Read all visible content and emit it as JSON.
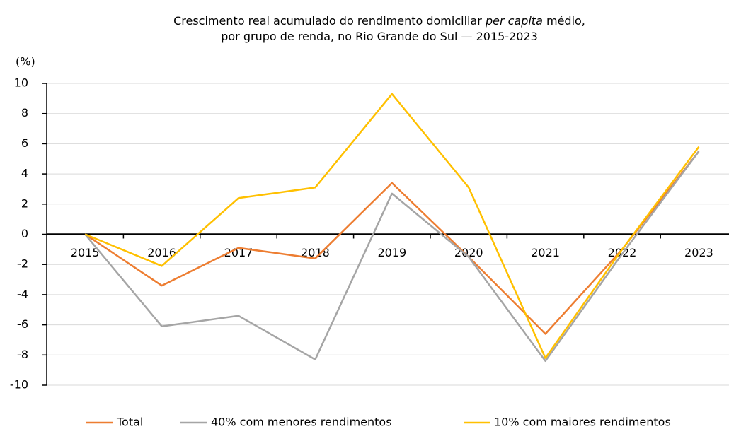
{
  "chart_data": {
    "type": "line",
    "title": [
      [
        "Crescimento real acumulado do rendimento domiciliar ",
        "per capita",
        " médio,"
      ],
      [
        "por grupo de renda, no Rio Grande do Sul — 2015-2023"
      ]
    ],
    "y_label": "(%)",
    "categories": [
      "2015",
      "2016",
      "2017",
      "2018",
      "2019",
      "2020",
      "2021",
      "2022",
      "2023"
    ],
    "series": [
      {
        "name": "Total",
        "color": "#ED7D31",
        "values": [
          0,
          -3.4,
          -0.9,
          -1.6,
          3.4,
          -1.5,
          -6.6,
          -1.0,
          5.5
        ]
      },
      {
        "name": "40% com menores rendimentos",
        "color": "#A5A5A5",
        "values": [
          0,
          -6.1,
          -5.4,
          -8.3,
          2.7,
          -1.5,
          -8.4,
          -1.3,
          5.5
        ]
      },
      {
        "name": "10% com maiores rendimentos",
        "color": "#FFC000",
        "values": [
          0,
          -2.1,
          2.4,
          3.1,
          9.3,
          3.1,
          -8.2,
          -1.0,
          5.8
        ]
      }
    ],
    "ylim": [
      -10,
      10
    ],
    "yticks": [
      -10,
      -8,
      -6,
      -4,
      -2,
      0,
      2,
      4,
      6,
      8,
      10
    ],
    "grid": true,
    "legend": "bottom"
  }
}
